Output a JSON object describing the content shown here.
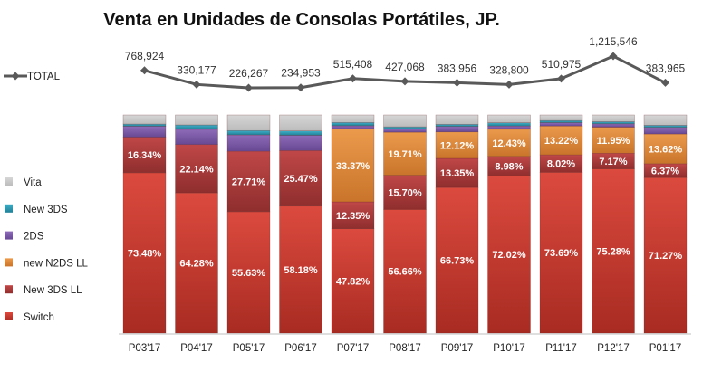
{
  "chart_data": {
    "type": "bar",
    "stacked": true,
    "percent_stacked": true,
    "title": "Venta en Unidades de Consolas Portátiles, JP.",
    "categories": [
      "P03'17",
      "P04'17",
      "P05'17",
      "P06'17",
      "P07'17",
      "P08'17",
      "P09'17",
      "P10'17",
      "P11'17",
      "P12'17",
      "P01'17"
    ],
    "series": [
      {
        "name": "Switch",
        "color": "#c0392b",
        "values": [
          73.48,
          64.28,
          55.63,
          58.18,
          47.82,
          56.66,
          66.73,
          72.02,
          73.69,
          75.28,
          71.27
        ],
        "labels": [
          "73.48%",
          "64.28%",
          "55.63%",
          "58.18%",
          "47.82%",
          "56.66%",
          "66.73%",
          "72.02%",
          "73.69%",
          "75.28%",
          "71.27%"
        ]
      },
      {
        "name": "New 3DS LL",
        "color": "#a93a3a",
        "values": [
          16.34,
          22.14,
          27.71,
          25.47,
          12.35,
          15.7,
          13.35,
          8.98,
          8.02,
          7.17,
          6.37
        ],
        "labels": [
          "16.34%",
          "22.14%",
          "27.71%",
          "25.47%",
          "12.35%",
          "15.70%",
          "13.35%",
          "8.98%",
          "8.02%",
          "7.17%",
          "6.37%"
        ]
      },
      {
        "name": "new N2DS LL",
        "color": "#e08a3c",
        "values": [
          0,
          0,
          0,
          0,
          33.37,
          19.71,
          12.12,
          12.43,
          13.22,
          11.95,
          13.62
        ],
        "labels": [
          "",
          "",
          "",
          "",
          "33.37%",
          "19.71%",
          "12.12%",
          "12.43%",
          "13.22%",
          "11.95%",
          "13.62%"
        ]
      },
      {
        "name": "2DS",
        "color": "#7b5aa6",
        "values": [
          5.0,
          7.0,
          7.5,
          7.0,
          1.5,
          1.5,
          2.5,
          1.5,
          1.5,
          1.5,
          3.0
        ],
        "labels": [
          "",
          "",
          "",
          "",
          "",
          "",
          "",
          "",
          "",
          "",
          ""
        ]
      },
      {
        "name": "New 3DS",
        "color": "#2e9bb5",
        "values": [
          1.0,
          2.0,
          2.0,
          2.0,
          1.5,
          1.0,
          1.0,
          1.5,
          1.0,
          1.0,
          1.0
        ],
        "labels": [
          "",
          "",
          "",
          "",
          "",
          "",
          "",
          "",
          "",
          "",
          ""
        ]
      },
      {
        "name": "Vita",
        "color": "#c8c8c8",
        "values": [
          4.18,
          4.58,
          7.16,
          7.35,
          3.46,
          5.43,
          4.3,
          3.57,
          2.57,
          3.1,
          4.74
        ],
        "labels": [
          "",
          "",
          "",
          "",
          "",
          "",
          "",
          "",
          "",
          "",
          ""
        ]
      }
    ],
    "total_line": {
      "name": "TOTAL",
      "color": "#595959",
      "values": [
        768924,
        330177,
        226267,
        234953,
        515408,
        427068,
        383956,
        328800,
        510975,
        1215546,
        383965
      ],
      "labels": [
        "768,924",
        "330,177",
        "226,267",
        "234,953",
        "515,408",
        "427,068",
        "383,956",
        "328,800",
        "510,975",
        "1,215,546",
        "383,965"
      ]
    },
    "legend_order": [
      "Vita",
      "New 3DS",
      "2DS",
      "new N2DS LL",
      "New 3DS LL",
      "Switch"
    ],
    "legend_position": "left",
    "ylim": [
      0,
      100
    ],
    "xlabel": "",
    "ylabel": "",
    "grid": false
  }
}
